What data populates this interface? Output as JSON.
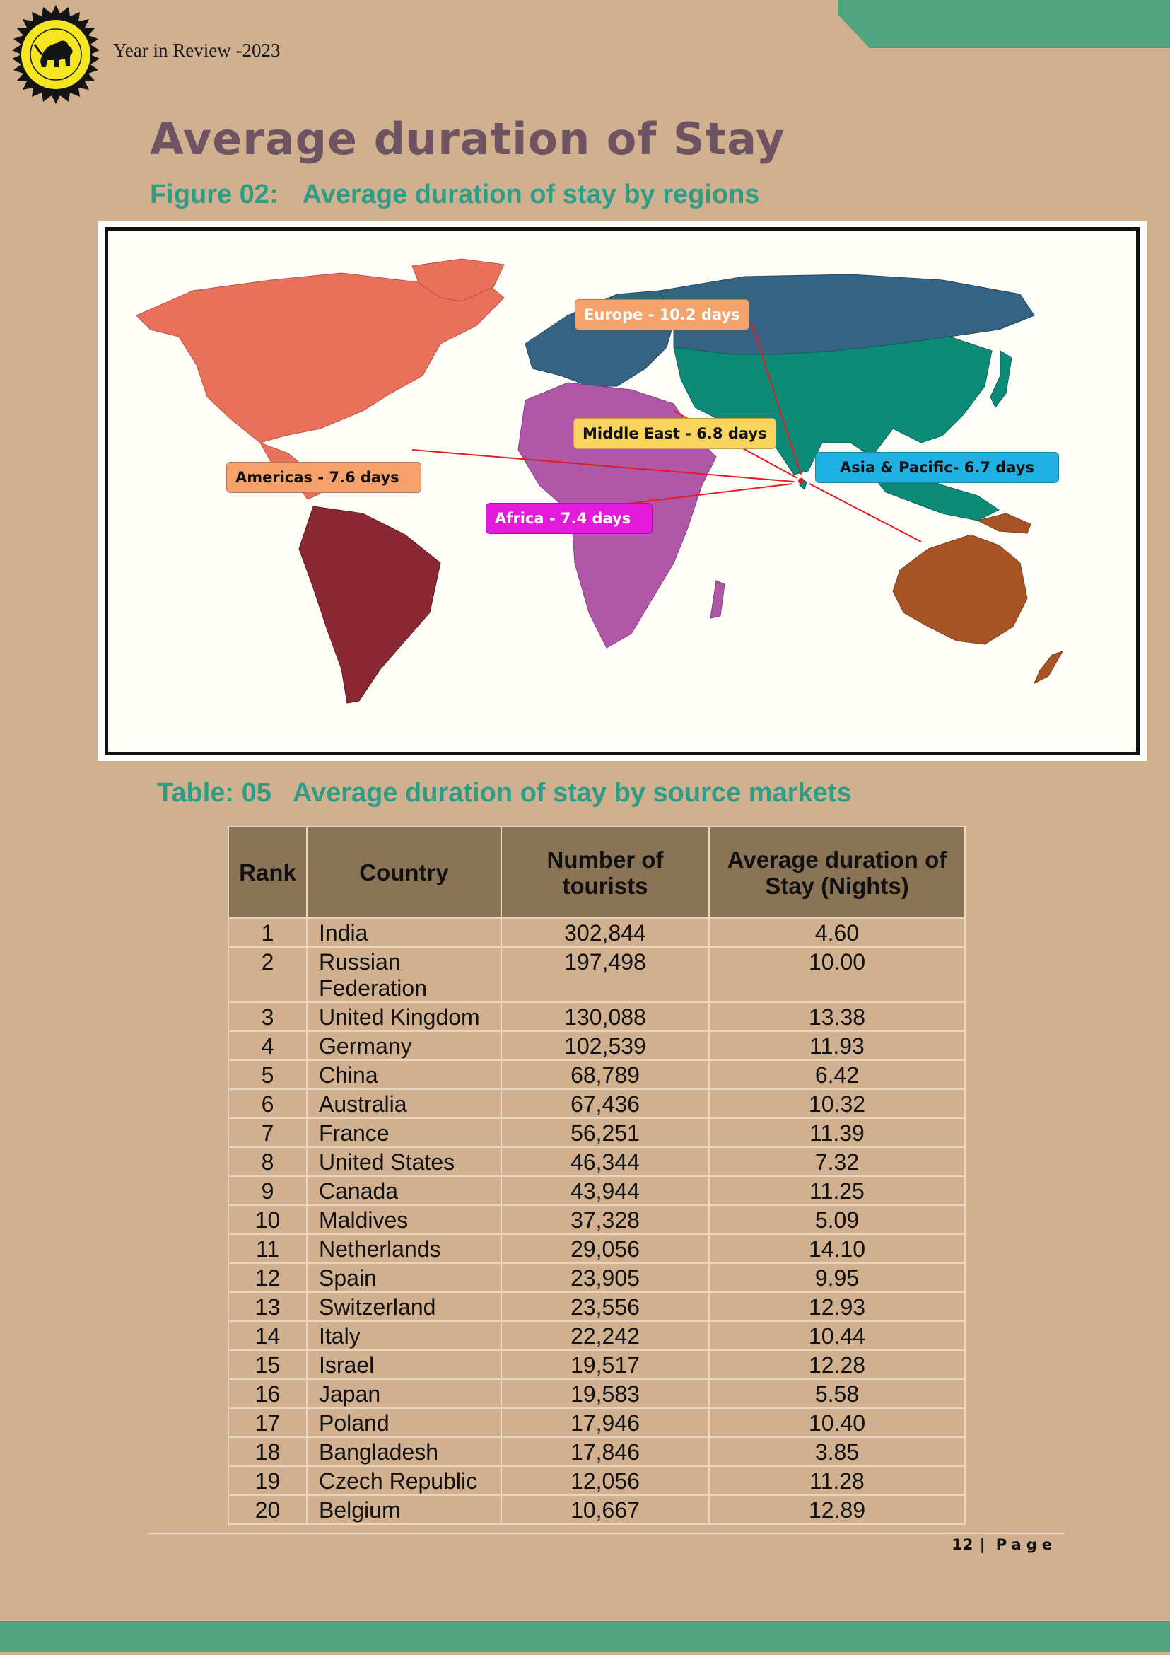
{
  "header": {
    "text": "Year in Review -2023"
  },
  "page_title": "Average duration of Stay",
  "figure": {
    "number": "Figure 02:",
    "title": "Average duration of stay by regions",
    "regions": [
      {
        "label": "Europe - 10.2 days",
        "color": "#f4a36c",
        "text_color": "#ffffff"
      },
      {
        "label": "Middle East - 6.8 days",
        "color": "#fbd45e",
        "text_color": "#111111"
      },
      {
        "label": "Asia & Pacific- 6.7 days",
        "color": "#1fb1e3",
        "text_color": "#111111"
      },
      {
        "label": "Americas - 7.6 days",
        "color": "#f6a06a",
        "text_color": "#111111"
      },
      {
        "label": "Africa - 7.4 days",
        "color": "#e31ad9",
        "text_color": "#ffffff"
      }
    ]
  },
  "table": {
    "number": "Table: 05",
    "title": "Average duration of stay by source markets",
    "headers": [
      "Rank",
      "Country",
      "Number of tourists",
      "Average duration of Stay (Nights)"
    ],
    "rows": [
      [
        "1",
        "India",
        "302,844",
        "4.60"
      ],
      [
        "2",
        "Russian Federation",
        "197,498",
        "10.00"
      ],
      [
        "3",
        "United Kingdom",
        "130,088",
        "13.38"
      ],
      [
        "4",
        "Germany",
        "102,539",
        "11.93"
      ],
      [
        "5",
        "China",
        "68,789",
        "6.42"
      ],
      [
        "6",
        "Australia",
        "67,436",
        "10.32"
      ],
      [
        "7",
        "France",
        "56,251",
        "11.39"
      ],
      [
        "8",
        "United States",
        "46,344",
        "7.32"
      ],
      [
        "9",
        "Canada",
        "43,944",
        "11.25"
      ],
      [
        "10",
        "Maldives",
        "37,328",
        "5.09"
      ],
      [
        "11",
        "Netherlands",
        "29,056",
        "14.10"
      ],
      [
        "12",
        "Spain",
        "23,905",
        "9.95"
      ],
      [
        "13",
        "Switzerland",
        "23,556",
        "12.93"
      ],
      [
        "14",
        "Italy",
        "22,242",
        "10.44"
      ],
      [
        "15",
        "Israel",
        "19,517",
        "12.28"
      ],
      [
        "16",
        "Japan",
        "19,583",
        "5.58"
      ],
      [
        "17",
        "Poland",
        "17,946",
        "10.40"
      ],
      [
        "18",
        "Bangladesh",
        "17,846",
        "3.85"
      ],
      [
        "19",
        "Czech Republic",
        "12,056",
        "11.28"
      ],
      [
        "20",
        "Belgium",
        "10,667",
        "12.89"
      ]
    ]
  },
  "footer": {
    "page_number": "12",
    "separator": "|",
    "page_word": "Page"
  },
  "colors": {
    "background": "#d1b08f",
    "accent_green": "#4fa482",
    "title_color": "#6e5361",
    "caption_color": "#2e9d86",
    "table_header_bg": "#8b7455"
  }
}
